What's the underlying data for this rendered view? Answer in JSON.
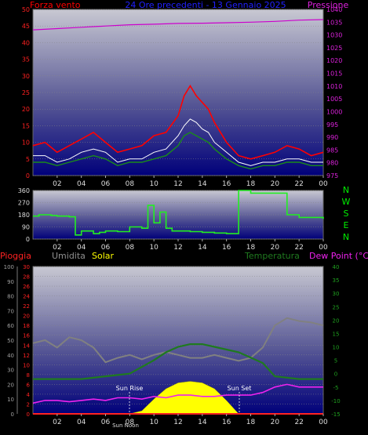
{
  "header": {
    "left_label": "Forza vento",
    "title": "24 Ore precedenti - 13 Gennaio 2025",
    "right_label": "Pressione"
  },
  "panel3_labels": {
    "pioggia": "Pioggia",
    "umidita": "Umidita",
    "solar": "Solar",
    "temperatura": "Temperatura",
    "dew_point": "Dew Point (°C)"
  },
  "annotations": {
    "sun_rise": "Sun Rise",
    "sun_set": "Sun Set",
    "sun_noon": "Sun Noon"
  },
  "compass": [
    "N",
    "W",
    "S",
    "E",
    "N"
  ],
  "colors": {
    "wind": "#ff0000",
    "gust_mid": "#1a8c1a",
    "wind_avg": "#ffffff",
    "pressure": "#cc00cc",
    "direction": "#22ee22",
    "rain": "#ff2222",
    "humidity": "#808080",
    "solar": "#ffff00",
    "temperature": "#1f7a1f",
    "dew_point": "#ee22ee",
    "compass": "#00ee00",
    "plot_top": "#c8c8d2",
    "plot_bottom": "#00007a"
  },
  "chart_data": [
    {
      "id": "wind-pressure",
      "type": "line",
      "xlabels": [
        "02",
        "04",
        "06",
        "08",
        "10",
        "12",
        "14",
        "16",
        "18",
        "20",
        "22",
        "00"
      ],
      "x_range_hours": [
        0,
        24
      ],
      "ylim_left": [
        0,
        50
      ],
      "yticks_left": [
        0,
        5,
        10,
        15,
        20,
        25,
        30,
        35,
        40,
        45,
        50
      ],
      "ylim_right": [
        975,
        1040
      ],
      "yticks_right": [
        975,
        980,
        985,
        990,
        995,
        1000,
        1005,
        1010,
        1015,
        1020,
        1025,
        1030,
        1035,
        1040
      ],
      "series": [
        {
          "name": "Forza vento",
          "axis": "left",
          "x": [
            0,
            1,
            2,
            3,
            4,
            5,
            6,
            7,
            8,
            9,
            10,
            11,
            12,
            12.5,
            13,
            13.5,
            14,
            14.5,
            15,
            16,
            17,
            18,
            19,
            20,
            21,
            22,
            23,
            24
          ],
          "values": [
            9,
            10,
            7,
            9,
            11,
            13,
            10,
            7,
            8,
            9,
            12,
            13,
            18,
            24,
            27,
            24,
            22,
            20,
            16,
            10,
            6,
            5,
            6,
            7,
            9,
            8,
            6,
            7
          ]
        },
        {
          "name": "",
          "axis": "left",
          "x": [
            0,
            1,
            2,
            3,
            4,
            5,
            6,
            7,
            8,
            9,
            10,
            11,
            12,
            12.5,
            13,
            13.5,
            14,
            14.5,
            15,
            16,
            17,
            18,
            19,
            20,
            21,
            22,
            23,
            24
          ],
          "values": [
            4,
            4,
            3,
            4,
            5,
            6,
            5,
            3,
            4,
            4,
            5,
            6,
            9,
            12,
            13,
            12,
            11,
            10,
            8,
            5,
            3,
            2,
            3,
            3,
            4,
            4,
            3,
            3
          ]
        },
        {
          "name": "",
          "axis": "left",
          "x": [
            0,
            1,
            2,
            3,
            4,
            5,
            6,
            7,
            8,
            9,
            10,
            11,
            12,
            12.5,
            13,
            13.5,
            14,
            14.5,
            15,
            16,
            17,
            18,
            19,
            20,
            21,
            22,
            23,
            24
          ],
          "values": [
            6,
            6,
            4,
            5,
            7,
            8,
            7,
            4,
            5,
            5,
            7,
            8,
            12,
            15,
            17,
            16,
            14,
            13,
            10,
            7,
            4,
            3,
            4,
            4,
            5,
            5,
            4,
            4
          ]
        },
        {
          "name": "Pressione",
          "axis": "right",
          "x": [
            0,
            2,
            4,
            6,
            8,
            10,
            12,
            14,
            16,
            18,
            20,
            22,
            24
          ],
          "values": [
            1032,
            1032.5,
            1033,
            1033.5,
            1034,
            1034.2,
            1034.5,
            1034.6,
            1034.8,
            1035,
            1035.3,
            1035.8,
            1036
          ]
        }
      ]
    },
    {
      "id": "wind-direction",
      "type": "line",
      "xlabels": [
        "02",
        "04",
        "06",
        "08",
        "10",
        "12",
        "14",
        "16",
        "18",
        "20",
        "22",
        "00"
      ],
      "ylim": [
        0,
        360
      ],
      "yticks": [
        0,
        90,
        180,
        270,
        360
      ],
      "series": [
        {
          "name": "",
          "x": [
            0,
            0.5,
            1,
            1.5,
            2,
            3,
            3.5,
            4,
            5,
            5.5,
            6,
            7,
            8,
            9,
            9.5,
            10,
            10.5,
            11,
            11.5,
            12,
            13,
            14,
            15,
            16,
            17,
            18,
            19,
            20,
            21,
            22,
            23,
            24
          ],
          "values": [
            170,
            180,
            180,
            175,
            170,
            165,
            30,
            60,
            40,
            50,
            60,
            55,
            90,
            80,
            250,
            120,
            200,
            80,
            60,
            60,
            55,
            50,
            45,
            40,
            360,
            340,
            340,
            340,
            180,
            160,
            160,
            150
          ]
        }
      ]
    },
    {
      "id": "rain-humidity-solar-temperature",
      "type": "line",
      "xlabels": [
        "02",
        "04",
        "06",
        "08",
        "10",
        "12",
        "14",
        "16",
        "18",
        "20",
        "22",
        "00"
      ],
      "ylim_humidity": [
        0,
        100
      ],
      "yticks_humidity": [
        0,
        10,
        20,
        30,
        40,
        50,
        60,
        70,
        80,
        90,
        100
      ],
      "ylim_rain": [
        0,
        30
      ],
      "yticks_rain": [
        0,
        2,
        4,
        6,
        8,
        10,
        12,
        14,
        16,
        18,
        20,
        22,
        24,
        26,
        28,
        30
      ],
      "ylim_temperature": [
        -15,
        40
      ],
      "yticks_temperature": [
        -15,
        -10,
        -5,
        0,
        5,
        10,
        15,
        20,
        25,
        30,
        35,
        40
      ],
      "series": [
        {
          "name": "Umidita",
          "axis": "humidity",
          "x": [
            0,
            1,
            2,
            3,
            4,
            5,
            6,
            7,
            8,
            9,
            10,
            11,
            12,
            13,
            14,
            15,
            16,
            17,
            18,
            19,
            20,
            21,
            22,
            23,
            24
          ],
          "values": [
            48,
            50,
            45,
            52,
            50,
            45,
            35,
            38,
            40,
            37,
            40,
            42,
            40,
            38,
            38,
            40,
            38,
            36,
            38,
            45,
            60,
            65,
            63,
            62,
            60
          ]
        },
        {
          "name": "Temperatura",
          "axis": "temperature",
          "x": [
            0,
            2,
            4,
            6,
            8,
            10,
            11,
            12,
            13,
            14,
            15,
            16,
            17,
            18,
            19,
            20,
            22,
            24
          ],
          "values": [
            -2,
            -2,
            -2,
            -1,
            0,
            5,
            8,
            10,
            11,
            11,
            10,
            9,
            8,
            6,
            4,
            -1,
            -2,
            -2
          ]
        },
        {
          "name": "Dew Point (°C)",
          "axis": "temperature",
          "x": [
            0,
            1,
            2,
            3,
            4,
            5,
            6,
            7,
            8,
            9,
            10,
            11,
            12,
            13,
            14,
            15,
            16,
            17,
            18,
            19,
            20,
            21,
            22,
            23,
            24
          ],
          "values": [
            -11,
            -10,
            -10,
            -10.5,
            -10,
            -9.5,
            -10,
            -9,
            -9,
            -9.5,
            -8.5,
            -9,
            -8,
            -8,
            -8.5,
            -8.5,
            -8,
            -8,
            -8,
            -7,
            -5,
            -4,
            -5,
            -5,
            -5
          ]
        },
        {
          "name": "Solar",
          "axis": "humidity",
          "type": "area",
          "x": [
            8,
            9,
            10,
            11,
            12,
            13,
            14,
            15,
            16,
            17
          ],
          "values": [
            0,
            2,
            10,
            17,
            21,
            22,
            21,
            17,
            9,
            0
          ]
        },
        {
          "name": "Pioggia",
          "axis": "rain",
          "x": [
            0,
            24
          ],
          "values": [
            0,
            0
          ]
        }
      ]
    }
  ]
}
